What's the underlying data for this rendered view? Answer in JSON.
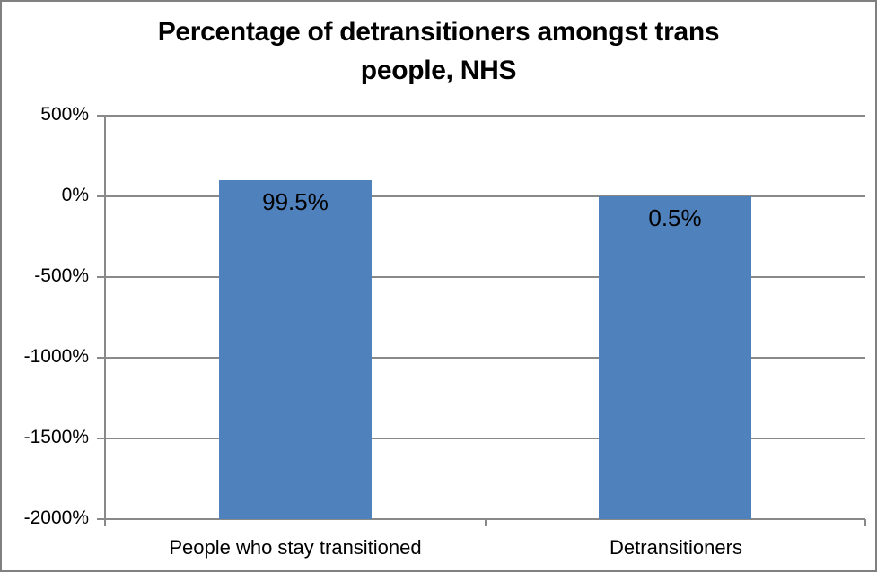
{
  "chart_data": {
    "type": "bar",
    "title": "Percentage of detransitioners amongst trans people, NHS",
    "title_lines": [
      "Percentage of detransitioners amongst trans",
      "people, NHS"
    ],
    "categories": [
      "People who stay transitioned",
      "Detransitioners"
    ],
    "values": [
      99.5,
      0.5
    ],
    "data_labels": [
      "99.5%",
      "0.5%"
    ],
    "xlabel": "",
    "ylabel": "",
    "ylim": [
      -2000,
      500
    ],
    "yticks": [
      500,
      0,
      -500,
      -1000,
      -1500,
      -2000
    ],
    "ytick_labels": [
      "500%",
      "0%",
      "-500%",
      "-1000%",
      "-1500%",
      "-2000%"
    ],
    "bars_extend_to": -2000,
    "grid": true,
    "legend": false,
    "colors": {
      "bar": "#4F81BD",
      "gridline": "#898989",
      "axis": "#898989",
      "frame_border": "#808080",
      "text": "#000000"
    }
  }
}
